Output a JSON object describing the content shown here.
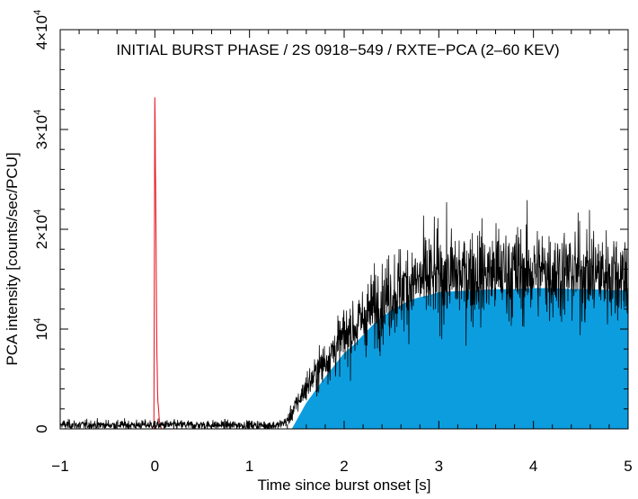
{
  "chart_data": {
    "type": "line",
    "title": "INITIAL BURST PHASE / 2S 0918−549 / RXTE−PCA (2–60 KEV)",
    "xlabel": "Time since burst onset [s]",
    "ylabel": "PCA intensity [counts/sec/PCU]",
    "xlim": [
      -1,
      5
    ],
    "ylim": [
      0,
      40000
    ],
    "x_ticks": [
      {
        "value": -1,
        "label": "−1"
      },
      {
        "value": 0,
        "label": "0"
      },
      {
        "value": 1,
        "label": "1"
      },
      {
        "value": 2,
        "label": "2"
      },
      {
        "value": 3,
        "label": "3"
      },
      {
        "value": 4,
        "label": "4"
      },
      {
        "value": 5,
        "label": "5"
      }
    ],
    "y_ticks": [
      {
        "value": 0,
        "mantissa": "0",
        "exponent": ""
      },
      {
        "value": 10000,
        "mantissa": "10",
        "exponent": "4"
      },
      {
        "value": 20000,
        "mantissa": "2×10",
        "exponent": "4"
      },
      {
        "value": 30000,
        "mantissa": "3×10",
        "exponent": "4"
      },
      {
        "value": 40000,
        "mantissa": "4×10",
        "exponent": "4"
      }
    ],
    "grid": false,
    "series": [
      {
        "role": "precursor spike",
        "color": "#e8202a",
        "points": [
          [
            -0.01,
            0
          ],
          [
            0.0,
            34000
          ],
          [
            0.01,
            22000
          ],
          [
            0.02,
            9000
          ],
          [
            0.03,
            3000
          ],
          [
            0.05,
            600
          ],
          [
            0.07,
            0
          ]
        ]
      },
      {
        "role": "main burst",
        "color": "#000000",
        "fill": "#0c9ddf",
        "points": [
          [
            -1.0,
            400
          ],
          [
            0.07,
            400
          ],
          [
            1.3,
            350
          ],
          [
            1.4,
            800
          ],
          [
            1.5,
            2500
          ],
          [
            1.6,
            4200
          ],
          [
            1.7,
            5500
          ],
          [
            1.8,
            6800
          ],
          [
            1.9,
            8000
          ],
          [
            2.0,
            9200
          ],
          [
            2.1,
            10000
          ],
          [
            2.2,
            11000
          ],
          [
            2.3,
            12000
          ],
          [
            2.4,
            12800
          ],
          [
            2.5,
            13500
          ],
          [
            2.6,
            14000
          ],
          [
            2.7,
            14500
          ],
          [
            2.8,
            14800
          ],
          [
            2.9,
            15000
          ],
          [
            3.0,
            15300
          ],
          [
            3.2,
            15400
          ],
          [
            3.4,
            15500
          ],
          [
            3.6,
            15600
          ],
          [
            3.8,
            15600
          ],
          [
            4.0,
            15700
          ],
          [
            4.2,
            15700
          ],
          [
            4.4,
            15600
          ],
          [
            4.6,
            15600
          ],
          [
            4.8,
            15500
          ],
          [
            5.0,
            15500
          ]
        ]
      }
    ]
  }
}
